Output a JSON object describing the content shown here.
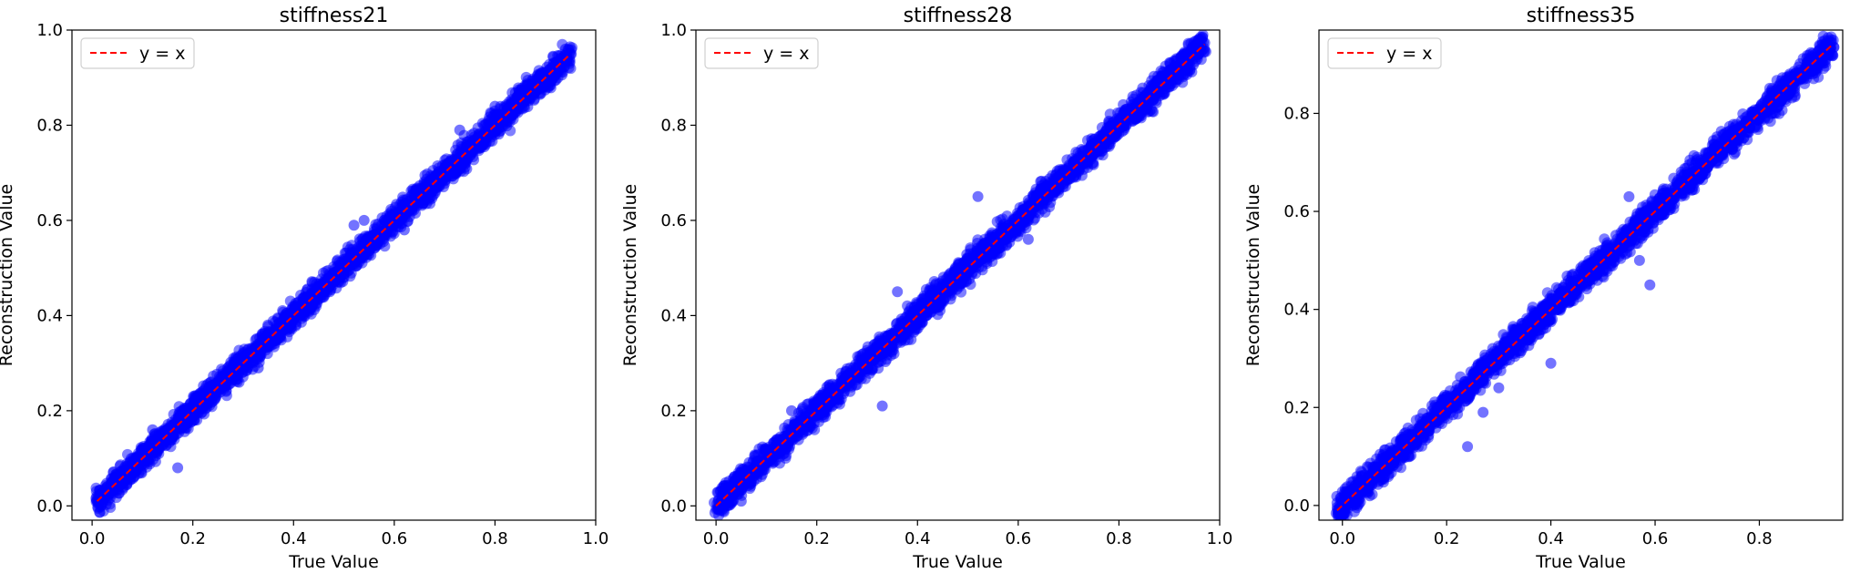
{
  "colors": {
    "points": "#0000ff",
    "reference_line": "#ff0000",
    "axes": "#000000",
    "legend_border": "#d0d0d0"
  },
  "chart_data": [
    {
      "type": "scatter",
      "title": "stiffness21",
      "xlabel": "True Value",
      "ylabel": "Reconstruction Value",
      "xlim": [
        -0.04,
        1.0
      ],
      "ylim": [
        -0.03,
        1.0
      ],
      "xticks": [
        0.0,
        0.2,
        0.4,
        0.6,
        0.8,
        1.0
      ],
      "xtick_labels": [
        "0.0",
        "0.2",
        "0.4",
        "0.6",
        "0.8",
        "1.0"
      ],
      "yticks": [
        0.0,
        0.2,
        0.4,
        0.6,
        0.8,
        1.0
      ],
      "ytick_labels": [
        "0.0",
        "0.2",
        "0.4",
        "0.6",
        "0.8",
        "1.0"
      ],
      "legend": {
        "label": "y = x",
        "placement": "top-left"
      },
      "reference_line": {
        "label": "y = x",
        "from": 0.01,
        "to": 0.95
      },
      "series": [
        {
          "x": [
            0.01,
            0.03,
            0.05,
            0.08,
            0.1,
            0.13,
            0.15,
            0.18,
            0.2,
            0.23,
            0.25,
            0.28,
            0.3,
            0.33,
            0.35,
            0.38,
            0.4,
            0.43,
            0.45,
            0.48,
            0.5,
            0.53,
            0.55,
            0.58,
            0.6,
            0.63,
            0.65,
            0.68,
            0.7,
            0.73,
            0.75,
            0.78,
            0.8,
            0.83,
            0.85,
            0.88,
            0.9,
            0.93,
            0.95,
            0.12,
            0.17,
            0.52,
            0.54,
            0.73,
            0.8,
            0.94,
            0.33,
            0.62
          ],
          "y": [
            0.01,
            0.04,
            0.06,
            0.07,
            0.11,
            0.12,
            0.16,
            0.17,
            0.21,
            0.22,
            0.26,
            0.27,
            0.31,
            0.32,
            0.36,
            0.37,
            0.41,
            0.42,
            0.46,
            0.47,
            0.51,
            0.52,
            0.56,
            0.57,
            0.61,
            0.62,
            0.66,
            0.67,
            0.71,
            0.72,
            0.76,
            0.77,
            0.81,
            0.82,
            0.86,
            0.87,
            0.91,
            0.92,
            0.95,
            0.16,
            0.08,
            0.59,
            0.6,
            0.79,
            0.84,
            0.96,
            0.29,
            0.58
          ]
        }
      ]
    },
    {
      "type": "scatter",
      "title": "stiffness28",
      "xlabel": "True Value",
      "ylabel": "Reconstruction Value",
      "xlim": [
        -0.04,
        1.0
      ],
      "ylim": [
        -0.03,
        1.0
      ],
      "xticks": [
        0.0,
        0.2,
        0.4,
        0.6,
        0.8,
        1.0
      ],
      "xtick_labels": [
        "0.0",
        "0.2",
        "0.4",
        "0.6",
        "0.8",
        "1.0"
      ],
      "yticks": [
        0.0,
        0.2,
        0.4,
        0.6,
        0.8,
        1.0
      ],
      "ytick_labels": [
        "0.0",
        "0.2",
        "0.4",
        "0.6",
        "0.8",
        "1.0"
      ],
      "legend": {
        "label": "y = x",
        "placement": "top-left"
      },
      "reference_line": {
        "label": "y = x",
        "from": 0.0,
        "to": 0.97
      },
      "series": [
        {
          "x": [
            0.01,
            0.03,
            0.05,
            0.08,
            0.1,
            0.13,
            0.15,
            0.18,
            0.2,
            0.23,
            0.25,
            0.28,
            0.3,
            0.33,
            0.35,
            0.38,
            0.4,
            0.43,
            0.45,
            0.48,
            0.5,
            0.53,
            0.55,
            0.58,
            0.6,
            0.63,
            0.65,
            0.68,
            0.7,
            0.73,
            0.75,
            0.78,
            0.8,
            0.83,
            0.85,
            0.88,
            0.9,
            0.93,
            0.96,
            0.15,
            0.22,
            0.33,
            0.52,
            0.55,
            0.62,
            0.05,
            0.36,
            0.94
          ],
          "y": [
            0.01,
            0.04,
            0.06,
            0.07,
            0.11,
            0.12,
            0.16,
            0.17,
            0.21,
            0.22,
            0.26,
            0.27,
            0.31,
            0.32,
            0.36,
            0.37,
            0.41,
            0.42,
            0.46,
            0.47,
            0.51,
            0.52,
            0.56,
            0.57,
            0.61,
            0.62,
            0.66,
            0.67,
            0.71,
            0.72,
            0.76,
            0.77,
            0.81,
            0.82,
            0.86,
            0.87,
            0.91,
            0.92,
            0.96,
            0.2,
            0.25,
            0.21,
            0.65,
            0.53,
            0.56,
            0.01,
            0.45,
            0.95
          ]
        }
      ]
    },
    {
      "type": "scatter",
      "title": "stiffness35",
      "xlabel": "True Value",
      "ylabel": "Reconstruction Value",
      "xlim": [
        -0.045,
        0.96
      ],
      "ylim": [
        -0.03,
        0.97
      ],
      "xticks": [
        0.0,
        0.2,
        0.4,
        0.6,
        0.8
      ],
      "xtick_labels": [
        "0.0",
        "0.2",
        "0.4",
        "0.6",
        "0.8"
      ],
      "yticks": [
        0.0,
        0.2,
        0.4,
        0.6,
        0.8
      ],
      "ytick_labels": [
        "0.0",
        "0.2",
        "0.4",
        "0.6",
        "0.8"
      ],
      "legend": {
        "label": "y = x",
        "placement": "top-left"
      },
      "reference_line": {
        "label": "y = x",
        "from": -0.01,
        "to": 0.94
      },
      "series": [
        {
          "x": [
            0.0,
            0.03,
            0.05,
            0.08,
            0.1,
            0.13,
            0.15,
            0.18,
            0.2,
            0.23,
            0.25,
            0.28,
            0.3,
            0.33,
            0.35,
            0.38,
            0.4,
            0.43,
            0.45,
            0.48,
            0.5,
            0.53,
            0.55,
            0.58,
            0.6,
            0.63,
            0.65,
            0.68,
            0.7,
            0.73,
            0.75,
            0.78,
            0.8,
            0.83,
            0.85,
            0.88,
            0.9,
            0.93,
            0.94,
            0.24,
            0.27,
            0.4,
            0.55,
            0.57,
            0.59,
            0.44,
            0.3
          ],
          "y": [
            0.0,
            0.04,
            0.06,
            0.07,
            0.11,
            0.12,
            0.16,
            0.17,
            0.21,
            0.22,
            0.26,
            0.27,
            0.31,
            0.32,
            0.36,
            0.37,
            0.41,
            0.42,
            0.46,
            0.47,
            0.51,
            0.52,
            0.56,
            0.57,
            0.61,
            0.62,
            0.66,
            0.67,
            0.71,
            0.72,
            0.76,
            0.77,
            0.81,
            0.82,
            0.86,
            0.87,
            0.91,
            0.92,
            0.92,
            0.12,
            0.19,
            0.29,
            0.63,
            0.5,
            0.45,
            0.47,
            0.24
          ]
        }
      ]
    }
  ]
}
